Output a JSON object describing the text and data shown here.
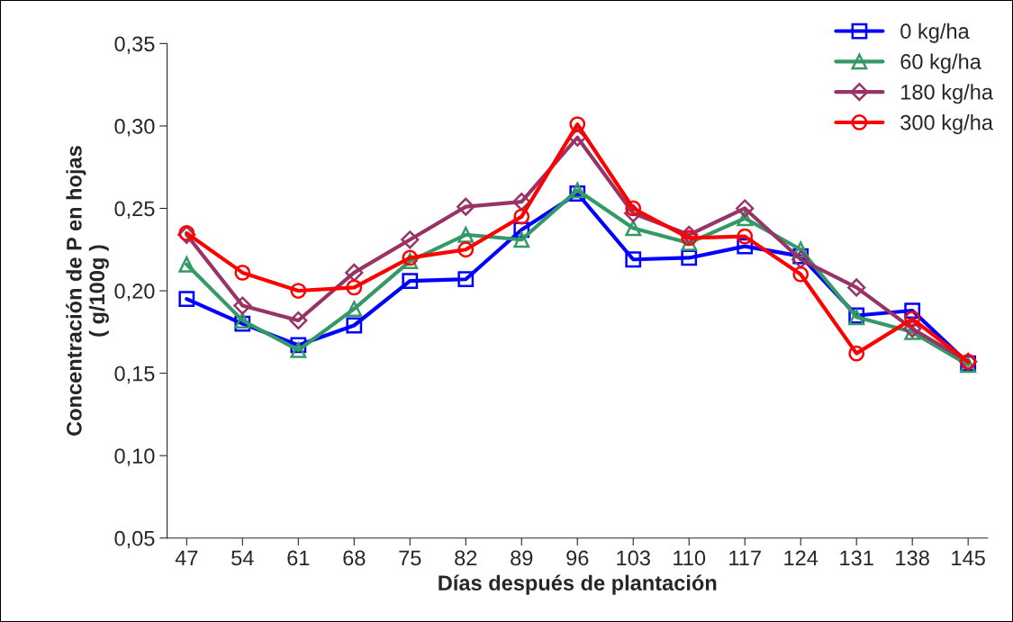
{
  "chart_data": {
    "type": "line",
    "xlabel": "Días después de plantación",
    "ylabel": "Concentración de P en hojas\n( g/100g )",
    "categories": [
      "47",
      "54",
      "61",
      "68",
      "75",
      "82",
      "89",
      "96",
      "103",
      "110",
      "117",
      "124",
      "131",
      "138",
      "145"
    ],
    "ylim": [
      0.05,
      0.35
    ],
    "yticks": [
      {
        "value": 0.05,
        "label": "0,05"
      },
      {
        "value": 0.1,
        "label": "0,10"
      },
      {
        "value": 0.15,
        "label": "0,15"
      },
      {
        "value": 0.2,
        "label": "0,20"
      },
      {
        "value": 0.25,
        "label": "0,25"
      },
      {
        "value": 0.3,
        "label": "0,30"
      },
      {
        "value": 0.35,
        "label": "0,35"
      }
    ],
    "grid": false,
    "legend": "top right",
    "line_style": "solid",
    "series": [
      {
        "name": "0 kg/ha",
        "color": "#0000ff",
        "marker": "square",
        "values": [
          0.195,
          0.18,
          0.167,
          0.179,
          0.206,
          0.207,
          0.237,
          0.259,
          0.219,
          0.22,
          0.227,
          0.221,
          0.185,
          0.188,
          0.156
        ]
      },
      {
        "name": "60 kg/ha",
        "color": "#339966",
        "marker": "triangle",
        "values": [
          0.216,
          0.182,
          0.164,
          0.189,
          0.218,
          0.234,
          0.231,
          0.261,
          0.238,
          0.229,
          0.244,
          0.225,
          0.184,
          0.175,
          0.155
        ]
      },
      {
        "name": "180 kg/ha",
        "color": "#993366",
        "marker": "diamond",
        "values": [
          0.234,
          0.191,
          0.182,
          0.211,
          0.231,
          0.251,
          0.254,
          0.293,
          0.247,
          0.234,
          0.25,
          0.219,
          0.202,
          0.177,
          0.157
        ]
      },
      {
        "name": "300 kg/ha",
        "color": "#ff0000",
        "marker": "circle",
        "values": [
          0.235,
          0.211,
          0.2,
          0.202,
          0.22,
          0.225,
          0.245,
          0.301,
          0.25,
          0.232,
          0.233,
          0.21,
          0.162,
          0.183,
          0.157
        ]
      }
    ]
  }
}
